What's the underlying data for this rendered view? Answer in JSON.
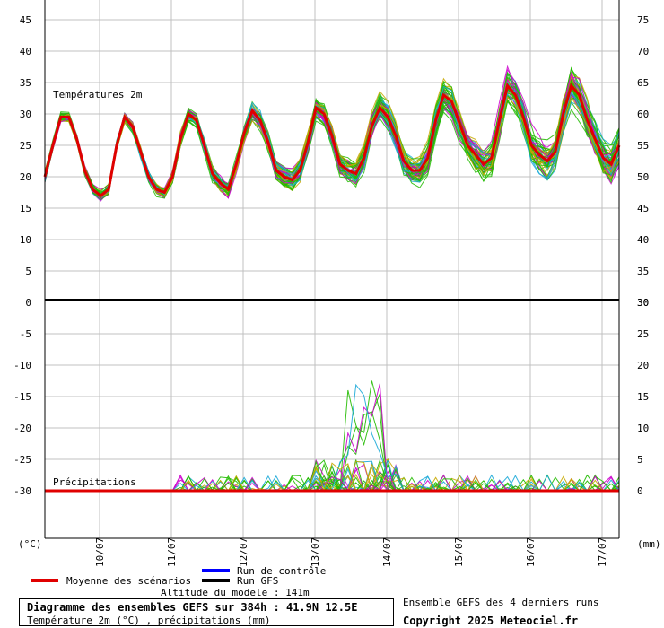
{
  "chart_data": {
    "type": "line",
    "upper": {
      "label": "Températures 2m",
      "left_ticks": [
        "45",
        "40",
        "35",
        "30",
        "25",
        "20",
        "15",
        "10",
        "5",
        "0"
      ],
      "right_ticks": [
        "75",
        "70",
        "65",
        "60",
        "55",
        "50",
        "45",
        "40",
        "35",
        "30"
      ],
      "ylim": [
        0,
        45
      ],
      "mean_series": {
        "name": "Moyenne des scénarios",
        "values": [
          20,
          25,
          29.5,
          29.5,
          26,
          21,
          18,
          17,
          18,
          25,
          29.5,
          28,
          24,
          20,
          18,
          17.5,
          20,
          26,
          30,
          29,
          25,
          20.5,
          19,
          18,
          22,
          27,
          30.5,
          29,
          25.5,
          21,
          20,
          19.5,
          21,
          25.5,
          31,
          30,
          26.5,
          22,
          21,
          20.5,
          23,
          28,
          31,
          29.5,
          26.5,
          22.5,
          21,
          21,
          23,
          29,
          33,
          32,
          28.5,
          25,
          23.5,
          22,
          23,
          29,
          34.5,
          33,
          29.5,
          25,
          23.5,
          22.5,
          24,
          30,
          34.5,
          33,
          29,
          26,
          23,
          22,
          25
        ]
      }
    },
    "lower": {
      "label": "Précipitations",
      "left_ticks": [
        "-5",
        "-10",
        "-15",
        "-20",
        "-25",
        "-30"
      ],
      "right_ticks": [
        "30",
        "25",
        "20",
        "15",
        "10",
        "5",
        "0"
      ],
      "mean_series": {
        "name": "Moyenne des scénarios",
        "values": [
          0,
          0,
          0,
          0,
          0,
          0,
          0,
          0,
          0,
          0,
          0,
          0,
          0,
          0,
          0,
          0,
          0,
          0,
          0,
          0,
          0,
          0,
          0,
          0,
          0,
          0,
          0,
          0,
          0,
          0,
          0,
          0,
          0,
          0,
          0,
          0,
          0,
          0,
          0,
          0,
          0,
          0,
          0,
          0,
          0,
          0,
          0,
          0,
          0,
          0,
          0,
          0,
          0,
          0,
          0,
          0,
          0,
          0,
          0,
          0,
          0,
          0,
          0,
          0,
          0,
          0,
          0,
          0,
          0,
          0,
          0,
          0,
          0
        ]
      }
    },
    "x_labels": [
      "10/07",
      "11/07",
      "12/07",
      "13/07",
      "14/07",
      "15/07",
      "16/07",
      "17/07"
    ],
    "left_unit": "(°C)",
    "right_unit": "(mm)",
    "legend": {
      "mean": "Moyenne des scénarios",
      "control": "Run de contrôle",
      "gfs": "Run GFS"
    },
    "colors": {
      "mean": "#e00000",
      "control": "#0000ff",
      "gfs": "#000000",
      "ensemble_1": "#22bb00",
      "ensemble_2": "#cc00cc",
      "ensemble_3": "#1aa9d8",
      "ensemble_4": "#c8a800",
      "grid": "#c0c0c0"
    }
  },
  "footer": {
    "altitude": "Altitude du modele : 141m",
    "title": "Diagramme des ensembles GEFS sur 384h : 41.9N 12.5E",
    "subtitle": "Température 2m (°C) , précipitations (mm)",
    "runs": "Ensemble GEFS des 4 derniers runs",
    "copyright": "Copyright 2025 Meteociel.fr"
  }
}
